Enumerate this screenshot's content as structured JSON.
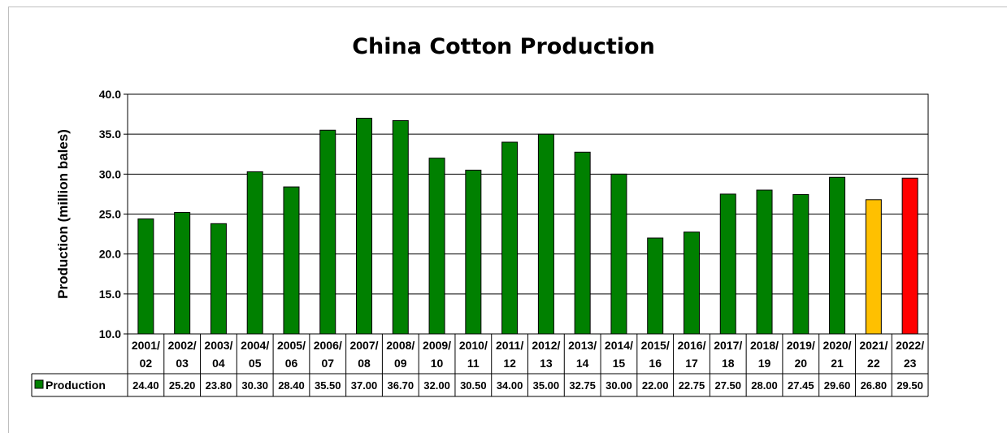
{
  "chart_data": {
    "type": "bar",
    "title": "China Cotton Production",
    "ylabel": "Production (million bales)",
    "xlabel": "",
    "ylim": [
      10.0,
      40.0
    ],
    "ytick_step": 5.0,
    "yticks": [
      "10.0",
      "15.0",
      "20.0",
      "25.0",
      "30.0",
      "35.0",
      "40.0"
    ],
    "grid": true,
    "legend": "data-table",
    "categories": [
      [
        "2001/",
        "02"
      ],
      [
        "2002/",
        "03"
      ],
      [
        "2003/",
        "04"
      ],
      [
        "2004/",
        "05"
      ],
      [
        "2005/",
        "06"
      ],
      [
        "2006/",
        "07"
      ],
      [
        "2007/",
        "08"
      ],
      [
        "2008/",
        "09"
      ],
      [
        "2009/",
        "10"
      ],
      [
        "2010/",
        "11"
      ],
      [
        "2011/",
        "12"
      ],
      [
        "2012/",
        "13"
      ],
      [
        "2013/",
        "14"
      ],
      [
        "2014/",
        "15"
      ],
      [
        "2015/",
        "16"
      ],
      [
        "2016/",
        "17"
      ],
      [
        "2017/",
        "18"
      ],
      [
        "2018/",
        "19"
      ],
      [
        "2019/",
        "20"
      ],
      [
        "2020/",
        "21"
      ],
      [
        "2021/",
        "22"
      ],
      [
        "2022/",
        "23"
      ]
    ],
    "series": [
      {
        "name": "Production",
        "values": [
          24.4,
          25.2,
          23.8,
          30.3,
          28.4,
          35.5,
          37.0,
          36.7,
          32.0,
          30.5,
          34.0,
          35.0,
          32.75,
          30.0,
          22.0,
          22.75,
          27.5,
          28.0,
          27.45,
          29.6,
          26.8,
          29.5
        ],
        "value_labels": [
          "24.40",
          "25.20",
          "23.80",
          "30.30",
          "28.40",
          "35.50",
          "37.00",
          "36.70",
          "32.00",
          "30.50",
          "34.00",
          "35.00",
          "32.75",
          "30.00",
          "22.00",
          "22.75",
          "27.50",
          "28.00",
          "27.45",
          "29.60",
          "26.80",
          "29.50"
        ],
        "color": "#008000"
      }
    ],
    "bar_colors": [
      "#008000",
      "#008000",
      "#008000",
      "#008000",
      "#008000",
      "#008000",
      "#008000",
      "#008000",
      "#008000",
      "#008000",
      "#008000",
      "#008000",
      "#008000",
      "#008000",
      "#008000",
      "#008000",
      "#008000",
      "#008000",
      "#008000",
      "#008000",
      "#ffc000",
      "#ff0000"
    ]
  }
}
